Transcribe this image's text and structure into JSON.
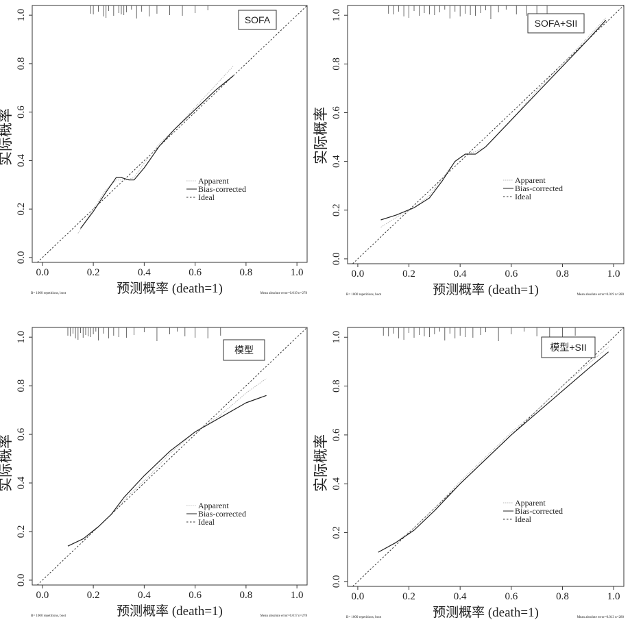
{
  "chart_data": [
    {
      "type": "line",
      "badge": "SOFA",
      "xlabel": "预测概率 (death=1)",
      "ylabel": "实际概率",
      "xlim": [
        -0.04,
        1.04
      ],
      "ylim": [
        -0.02,
        1.04
      ],
      "xticks": [
        "0.0",
        "0.2",
        "0.4",
        "0.6",
        "0.8",
        "1.0"
      ],
      "yticks": [
        "0.0",
        "0.2",
        "0.4",
        "0.6",
        "0.8",
        "1.0"
      ],
      "legend": [
        "Apparent",
        "Bias-corrected",
        "Ideal"
      ],
      "footnote_left": "B= 1000 repetitions, boot",
      "footnote_right": "Mean absolute error=0.019 n=278",
      "rug": [
        0.19,
        0.2,
        0.22,
        0.24,
        0.25,
        0.26,
        0.28,
        0.3,
        0.31,
        0.32,
        0.33,
        0.35,
        0.37,
        0.39,
        0.42,
        0.45,
        0.5,
        0.55,
        0.6,
        0.65
      ],
      "series": [
        {
          "name": "Apparent",
          "x": [
            0.14,
            0.2,
            0.25,
            0.29,
            0.33,
            0.36,
            0.4,
            0.46,
            0.52,
            0.6,
            0.68,
            0.75
          ],
          "y": [
            0.1,
            0.2,
            0.28,
            0.32,
            0.32,
            0.33,
            0.39,
            0.47,
            0.53,
            0.62,
            0.71,
            0.79
          ]
        },
        {
          "name": "Bias-corrected",
          "x": [
            0.15,
            0.2,
            0.25,
            0.29,
            0.31,
            0.34,
            0.36,
            0.4,
            0.46,
            0.52,
            0.6,
            0.68,
            0.75
          ],
          "y": [
            0.12,
            0.19,
            0.27,
            0.33,
            0.33,
            0.32,
            0.32,
            0.37,
            0.46,
            0.53,
            0.61,
            0.69,
            0.75
          ]
        }
      ]
    },
    {
      "type": "line",
      "badge": "SOFA+SII",
      "xlabel": "预测概率 (death=1)",
      "ylabel": "实际概率",
      "xlim": [
        -0.04,
        1.04
      ],
      "ylim": [
        -0.02,
        1.04
      ],
      "xticks": [
        "0.0",
        "0.2",
        "0.4",
        "0.6",
        "0.8",
        "1.0"
      ],
      "yticks": [
        "0.0",
        "0.2",
        "0.4",
        "0.6",
        "0.8",
        "1.0"
      ],
      "legend": [
        "Apparent",
        "Bias-corrected",
        "Ideal"
      ],
      "footnote_left": "B= 1000 repetitions, boot",
      "footnote_right": "Mean absolute error=0.019 n=280",
      "rug": [
        0.12,
        0.14,
        0.16,
        0.18,
        0.2,
        0.22,
        0.24,
        0.26,
        0.28,
        0.3,
        0.32,
        0.34,
        0.36,
        0.38,
        0.4,
        0.42,
        0.44,
        0.46,
        0.48,
        0.5,
        0.52,
        0.55,
        0.58,
        0.62,
        0.66,
        0.7,
        0.74
      ],
      "series": [
        {
          "name": "Apparent",
          "x": [
            0.09,
            0.15,
            0.22,
            0.28,
            0.33,
            0.38,
            0.42,
            0.46,
            0.5,
            0.6,
            0.7,
            0.8,
            0.9,
            0.97
          ],
          "y": [
            0.13,
            0.17,
            0.21,
            0.26,
            0.33,
            0.4,
            0.43,
            0.44,
            0.46,
            0.57,
            0.69,
            0.8,
            0.91,
            0.99
          ]
        },
        {
          "name": "Bias-corrected",
          "x": [
            0.09,
            0.15,
            0.22,
            0.28,
            0.33,
            0.38,
            0.42,
            0.46,
            0.5,
            0.6,
            0.7,
            0.8,
            0.9,
            0.97
          ],
          "y": [
            0.16,
            0.18,
            0.21,
            0.25,
            0.32,
            0.4,
            0.43,
            0.43,
            0.46,
            0.57,
            0.68,
            0.79,
            0.9,
            0.98
          ]
        }
      ]
    },
    {
      "type": "line",
      "badge": "模型",
      "xlabel": "预测概率 (death=1)",
      "ylabel": "实际概率",
      "xlim": [
        -0.04,
        1.04
      ],
      "ylim": [
        -0.02,
        1.04
      ],
      "xticks": [
        "0.0",
        "0.2",
        "0.4",
        "0.6",
        "0.8",
        "1.0"
      ],
      "yticks": [
        "0.0",
        "0.2",
        "0.4",
        "0.6",
        "0.8",
        "1.0"
      ],
      "legend": [
        "Apparent",
        "Bias-corrected",
        "Ideal"
      ],
      "footnote_left": "B= 1000 repetitions, boot",
      "footnote_right": "Mean absolute error=0.017 n=278",
      "rug": [
        0.1,
        0.11,
        0.12,
        0.13,
        0.14,
        0.15,
        0.16,
        0.17,
        0.18,
        0.19,
        0.2,
        0.21,
        0.22,
        0.24,
        0.26,
        0.28,
        0.3,
        0.33,
        0.36,
        0.4,
        0.45,
        0.5,
        0.53,
        0.56,
        0.6,
        0.65,
        0.7
      ],
      "series": [
        {
          "name": "Apparent",
          "x": [
            0.1,
            0.16,
            0.22,
            0.28,
            0.34,
            0.42,
            0.5,
            0.6,
            0.7,
            0.8,
            0.88
          ],
          "y": [
            0.14,
            0.17,
            0.22,
            0.28,
            0.35,
            0.43,
            0.52,
            0.61,
            0.68,
            0.77,
            0.83
          ]
        },
        {
          "name": "Bias-corrected",
          "x": [
            0.1,
            0.16,
            0.22,
            0.27,
            0.32,
            0.4,
            0.5,
            0.6,
            0.7,
            0.8,
            0.88
          ],
          "y": [
            0.14,
            0.17,
            0.22,
            0.27,
            0.34,
            0.43,
            0.53,
            0.61,
            0.67,
            0.73,
            0.76
          ]
        }
      ]
    },
    {
      "type": "line",
      "badge": "模型+SII",
      "xlabel": "预测概率 (death=1)",
      "ylabel": "实际概率",
      "xlim": [
        -0.04,
        1.04
      ],
      "ylim": [
        -0.02,
        1.04
      ],
      "xticks": [
        "0.0",
        "0.2",
        "0.4",
        "0.6",
        "0.8",
        "1.0"
      ],
      "yticks": [
        "0.0",
        "0.2",
        "0.4",
        "0.6",
        "0.8",
        "1.0"
      ],
      "legend": [
        "Apparent",
        "Bias-corrected",
        "Ideal"
      ],
      "footnote_left": "B= 1000 repetitions, boot",
      "footnote_right": "Mean absolute error=0.013 n=280",
      "rug": [
        0.1,
        0.12,
        0.14,
        0.16,
        0.18,
        0.2,
        0.22,
        0.24,
        0.26,
        0.28,
        0.3,
        0.32,
        0.34,
        0.36,
        0.38,
        0.4,
        0.42,
        0.45,
        0.48,
        0.5,
        0.55,
        0.6,
        0.65,
        0.7,
        0.75,
        0.8,
        0.85
      ],
      "series": [
        {
          "name": "Apparent",
          "x": [
            0.08,
            0.15,
            0.22,
            0.3,
            0.4,
            0.5,
            0.6,
            0.7,
            0.8,
            0.9,
            0.98
          ],
          "y": [
            0.12,
            0.16,
            0.22,
            0.3,
            0.41,
            0.51,
            0.61,
            0.7,
            0.8,
            0.89,
            0.96
          ]
        },
        {
          "name": "Bias-corrected",
          "x": [
            0.08,
            0.15,
            0.22,
            0.3,
            0.4,
            0.5,
            0.6,
            0.7,
            0.8,
            0.9,
            0.98
          ],
          "y": [
            0.12,
            0.16,
            0.21,
            0.29,
            0.4,
            0.5,
            0.6,
            0.69,
            0.78,
            0.87,
            0.94
          ]
        }
      ]
    }
  ]
}
